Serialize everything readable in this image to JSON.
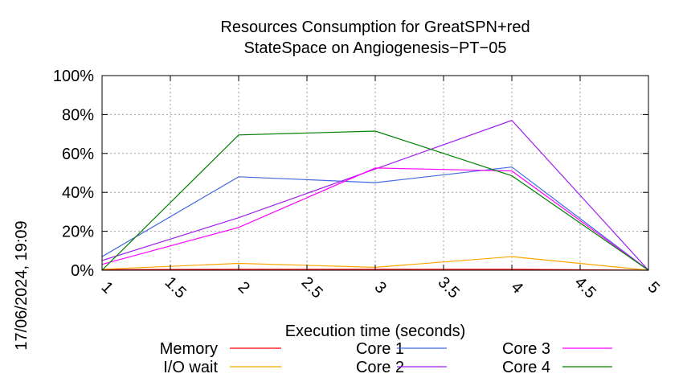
{
  "chart_data": {
    "type": "line",
    "title": [
      "Resources Consumption for GreatSPN+red",
      "StateSpace on Angiogenesis−PT−05"
    ],
    "xlabel": "Execution time (seconds)",
    "ylabel": "",
    "xlim": [
      1,
      5
    ],
    "ylim": [
      0,
      100
    ],
    "x_ticks": [
      1,
      1.5,
      2,
      2.5,
      3,
      3.5,
      4,
      4.5,
      5
    ],
    "x_tick_labels": [
      "1",
      "1.5",
      "2",
      "2.5",
      "3",
      "3.5",
      "4",
      "4.5",
      "5"
    ],
    "y_ticks": [
      0,
      20,
      40,
      60,
      80,
      100
    ],
    "y_tick_labels": [
      "0%",
      "20%",
      "40%",
      "60%",
      "80%",
      "100%"
    ],
    "grid": true,
    "legend_position": "bottom",
    "x": [
      1,
      2,
      3,
      4,
      5
    ],
    "series": [
      {
        "name": "Memory",
        "color": "#ff0000",
        "values": [
          0.3,
          0.5,
          0.5,
          0.5,
          0
        ]
      },
      {
        "name": "I/O wait",
        "color": "#ffa500",
        "values": [
          0.5,
          3.5,
          1.5,
          7,
          0
        ]
      },
      {
        "name": "Core 1",
        "color": "#4169e1",
        "values": [
          7,
          48,
          45,
          53,
          0
        ]
      },
      {
        "name": "Core 2",
        "color": "#a020f0",
        "values": [
          5,
          27,
          52,
          77,
          0
        ]
      },
      {
        "name": "Core 3",
        "color": "#ff00ff",
        "values": [
          3,
          22,
          52.5,
          51,
          0
        ]
      },
      {
        "name": "Core 4",
        "color": "#008000",
        "values": [
          0,
          69.5,
          71.5,
          48.5,
          0
        ]
      }
    ]
  },
  "timestamp": "17/06/2024, 19:09"
}
